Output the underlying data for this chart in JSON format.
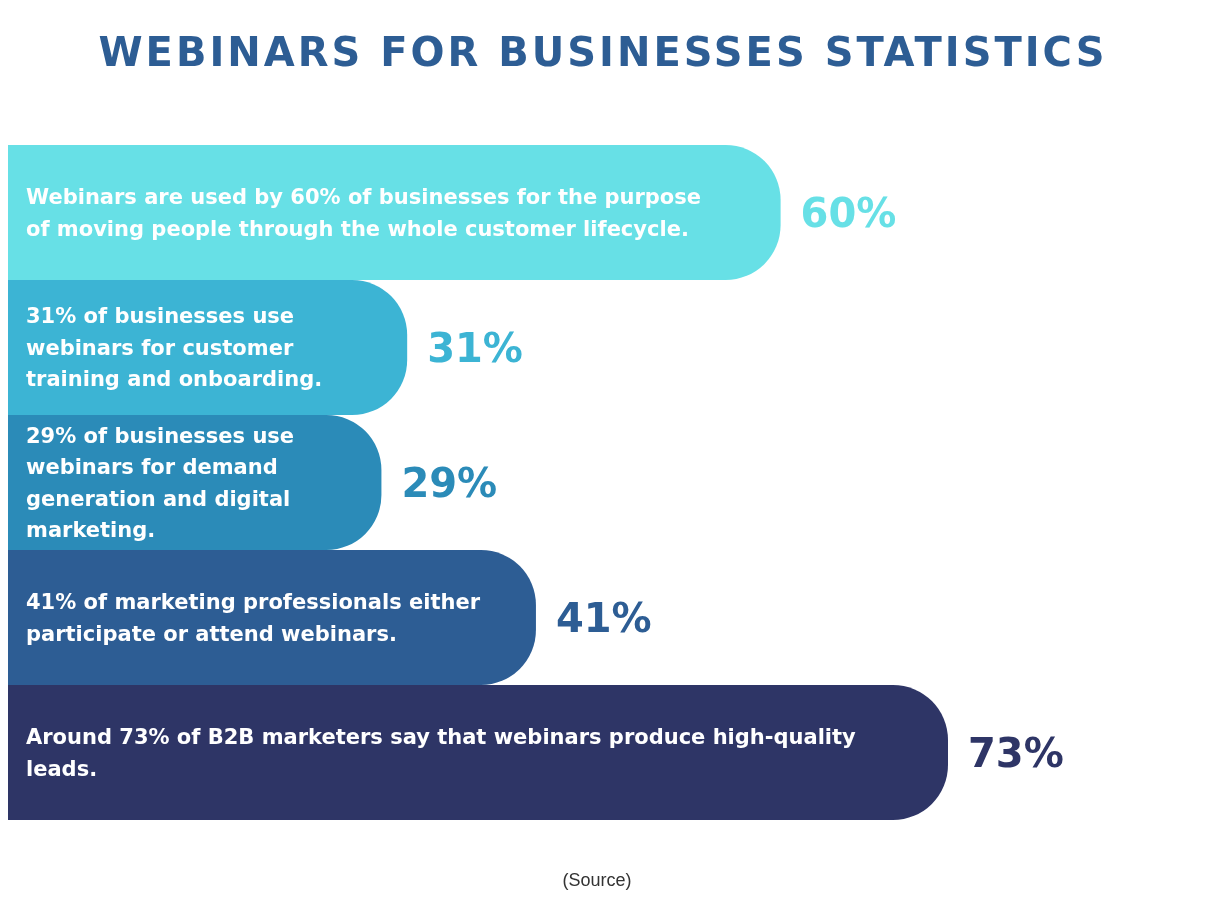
{
  "chart_data": {
    "type": "bar",
    "orientation": "horizontal",
    "title": "WEBINARS FOR BUSINESSES STATISTICS",
    "categories": [
      "Webinars are used by 60% of businesses for the purpose of moving people through the whole customer lifecycle.",
      "31% of businesses use webinars for customer training and onboarding.",
      "29% of businesses use webinars for demand generation and digital marketing.",
      "41% of marketing professionals either participate or attend webinars.",
      "Around 73% of B2B marketers say that webinars produce high-quality leads."
    ],
    "values": [
      60,
      31,
      29,
      41,
      73
    ],
    "colors": [
      "#67e0e6",
      "#3cb4d4",
      "#2b8bb8",
      "#2d5d94",
      "#2e3566"
    ],
    "value_labels": [
      "60%",
      "31%",
      "29%",
      "41%",
      "73%"
    ],
    "annotations": [
      "(Source)"
    ]
  }
}
